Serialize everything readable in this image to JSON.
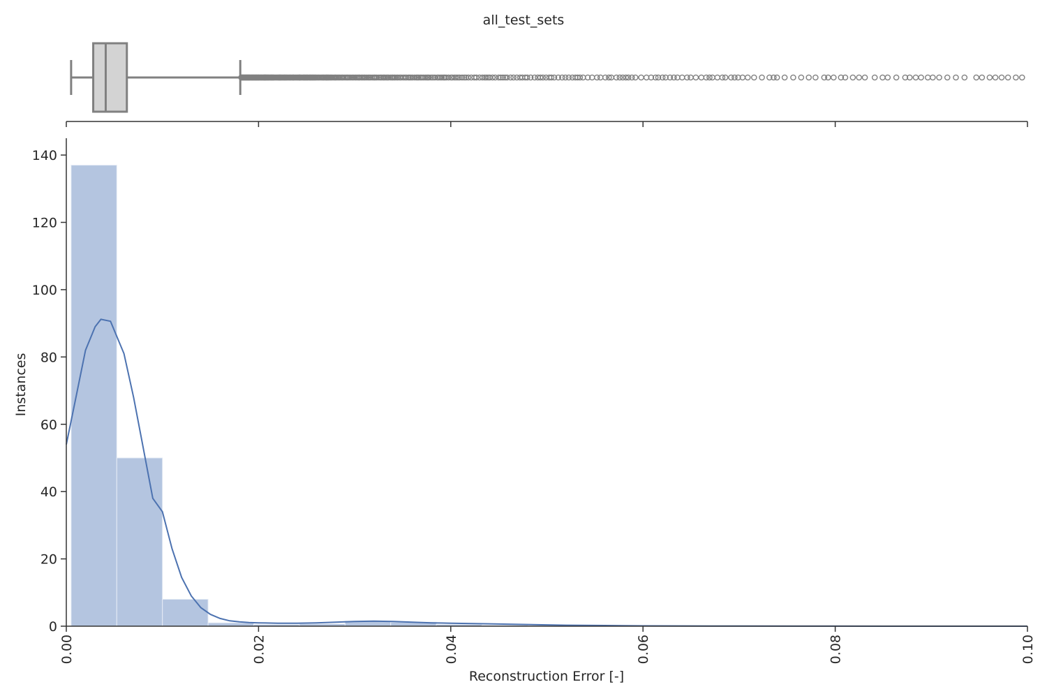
{
  "chart_data": [
    {
      "type": "box",
      "title": "all_test_sets",
      "xlim": [
        0.0,
        0.1
      ],
      "whisker_low": 0.0005,
      "q1": 0.0028,
      "median": 0.0041,
      "q3": 0.0063,
      "whisker_high": 0.0181,
      "outliers": {
        "from": 0.0182,
        "to": 0.1,
        "note_density": "dense near whisker, sparse toward 0.10"
      },
      "colors": {
        "box_fill": "#d3d3d3",
        "line": "#808080"
      }
    },
    {
      "type": "histogram",
      "xlabel": "Reconstruction Error [-]",
      "ylabel": "Instances",
      "xlim": [
        0.0,
        0.1
      ],
      "ylim": [
        0,
        145
      ],
      "xticks": [
        "0.00",
        "0.02",
        "0.04",
        "0.06",
        "0.08",
        "0.10"
      ],
      "yticks": [
        "0",
        "20",
        "40",
        "60",
        "80",
        "100",
        "120",
        "140"
      ],
      "bins": [
        {
          "x0": 0.0005,
          "x1": 0.00525,
          "count": 137
        },
        {
          "x0": 0.00525,
          "x1": 0.01,
          "count": 50
        },
        {
          "x0": 0.01,
          "x1": 0.01475,
          "count": 8
        },
        {
          "x0": 0.01475,
          "x1": 0.0195,
          "count": 1
        },
        {
          "x0": 0.0195,
          "x1": 0.02425,
          "count": 0.5
        },
        {
          "x0": 0.02425,
          "x1": 0.029,
          "count": 0.7
        },
        {
          "x0": 0.029,
          "x1": 0.03375,
          "count": 1.5
        },
        {
          "x0": 0.03375,
          "x1": 0.0385,
          "count": 1.2
        },
        {
          "x0": 0.0385,
          "x1": 0.04325,
          "count": 0.5
        },
        {
          "x0": 0.04325,
          "x1": 0.048,
          "count": 0.3
        }
      ],
      "kde": {
        "x": [
          0.0,
          0.001,
          0.002,
          0.003,
          0.0036,
          0.0046,
          0.006,
          0.007,
          0.008,
          0.009,
          0.01,
          0.011,
          0.012,
          0.013,
          0.014,
          0.015,
          0.016,
          0.017,
          0.018,
          0.019,
          0.02,
          0.022,
          0.024,
          0.026,
          0.028,
          0.03,
          0.032,
          0.034,
          0.036,
          0.038,
          0.04,
          0.044,
          0.048,
          0.052,
          0.056,
          0.06,
          0.07,
          0.08,
          0.09,
          0.1
        ],
        "y": [
          54,
          68,
          82,
          89,
          91.2,
          90.6,
          81,
          68,
          53,
          38,
          34,
          23,
          14.5,
          9,
          5.5,
          3.5,
          2.3,
          1.6,
          1.3,
          1.1,
          1.0,
          0.9,
          0.9,
          1.0,
          1.2,
          1.4,
          1.5,
          1.4,
          1.2,
          1.0,
          0.9,
          0.7,
          0.5,
          0.3,
          0.2,
          0.1,
          0.05,
          0.02,
          0.01,
          0.0
        ]
      },
      "colors": {
        "bar": "#b4c5e0",
        "bar_edge": "#e6ecf5",
        "kde": "#4c72b0"
      }
    }
  ]
}
